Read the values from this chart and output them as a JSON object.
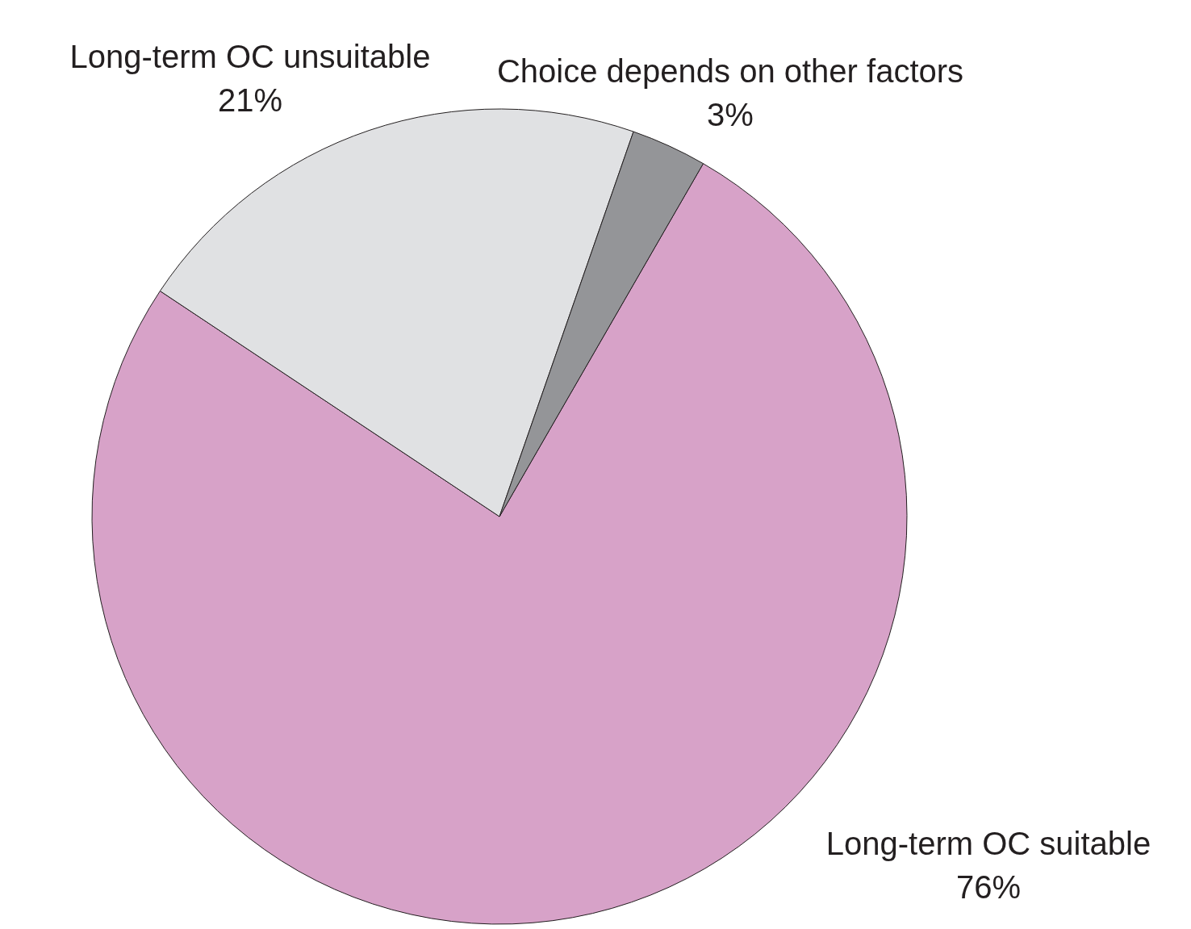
{
  "chart_data": {
    "type": "pie",
    "categories": [
      "Long-term OC suitable",
      "Long-term OC unsuitable",
      "Choice depends on other factors"
    ],
    "values": [
      76,
      21,
      3
    ],
    "value_labels": [
      "76%",
      "21%",
      "3%"
    ],
    "colors": [
      "#d7a2c8",
      "#e0e1e3",
      "#949598"
    ]
  }
}
